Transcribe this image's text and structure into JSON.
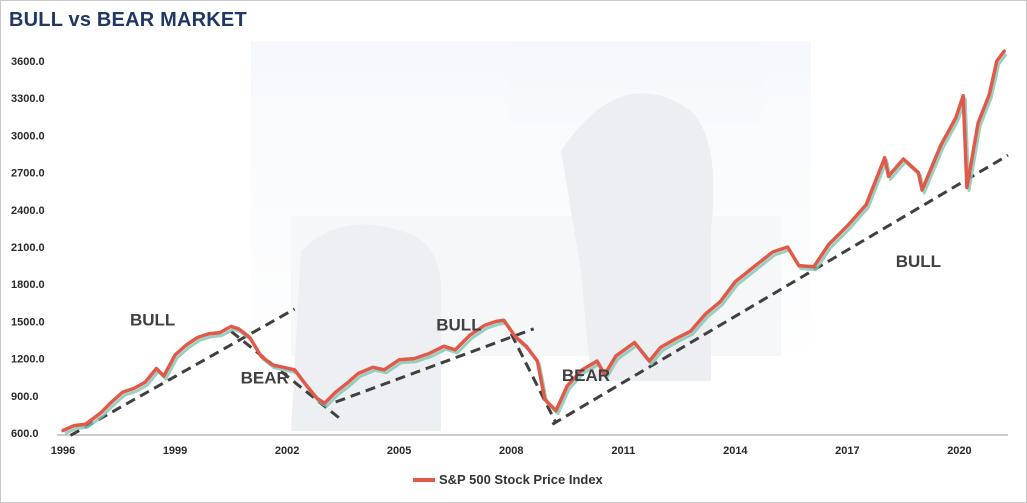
{
  "chart_data": {
    "type": "line",
    "title": "BULL vs BEAR MARKET",
    "ylim": [
      600,
      3700
    ],
    "xlim": [
      1996,
      2021.3
    ],
    "y_ticks": [
      "600.0",
      "900.0",
      "1200.0",
      "1500.0",
      "1800.0",
      "2100.0",
      "2400.0",
      "2700.0",
      "3000.0",
      "3300.0",
      "3600.0"
    ],
    "x_ticks": [
      "1996",
      "1999",
      "2002",
      "2005",
      "2008",
      "2011",
      "2014",
      "2017",
      "2020"
    ],
    "colors": {
      "series": "#e15a49",
      "shadow": "#7fc4b3",
      "trend": "#404040",
      "title": "#1f3864"
    },
    "legend": {
      "position": "bottom-center",
      "label": "S&P 500 Stock Price Index"
    },
    "series": [
      {
        "name": "S&P 500 Stock Price Index",
        "x": [
          1996.0,
          1996.3,
          1996.6,
          1997.0,
          1997.3,
          1997.6,
          1997.9,
          1998.2,
          1998.5,
          1998.7,
          1999.0,
          1999.3,
          1999.6,
          1999.9,
          2000.2,
          2000.5,
          2000.7,
          2001.0,
          2001.3,
          2001.6,
          2001.9,
          2002.2,
          2002.5,
          2002.8,
          2003.0,
          2003.3,
          2003.6,
          2003.9,
          2004.3,
          2004.6,
          2005.0,
          2005.4,
          2005.8,
          2006.2,
          2006.5,
          2006.9,
          2007.3,
          2007.6,
          2007.8,
          2008.1,
          2008.4,
          2008.7,
          2008.9,
          2009.2,
          2009.5,
          2009.9,
          2010.3,
          2010.5,
          2010.8,
          2011.3,
          2011.7,
          2012.0,
          2012.4,
          2012.8,
          2013.2,
          2013.6,
          2014.0,
          2014.5,
          2015.0,
          2015.4,
          2015.7,
          2016.1,
          2016.5,
          2017.0,
          2017.5,
          2018.0,
          2018.1,
          2018.5,
          2018.9,
          2019.0,
          2019.5,
          2019.9,
          2020.1,
          2020.2,
          2020.5,
          2020.8,
          2021.0,
          2021.2
        ],
        "values": [
          620,
          660,
          670,
          760,
          850,
          930,
          960,
          1010,
          1120,
          1060,
          1230,
          1310,
          1370,
          1400,
          1410,
          1460,
          1440,
          1370,
          1220,
          1150,
          1130,
          1110,
          990,
          880,
          840,
          930,
          1000,
          1080,
          1130,
          1110,
          1190,
          1200,
          1240,
          1300,
          1270,
          1390,
          1470,
          1500,
          1510,
          1380,
          1300,
          1180,
          870,
          780,
          980,
          1110,
          1180,
          1070,
          1220,
          1330,
          1180,
          1290,
          1360,
          1420,
          1560,
          1660,
          1820,
          1940,
          2060,
          2100,
          1950,
          1940,
          2120,
          2270,
          2440,
          2820,
          2670,
          2810,
          2700,
          2560,
          2920,
          3140,
          3320,
          2580,
          3100,
          3330,
          3600,
          3680
        ]
      }
    ],
    "trendlines": [
      {
        "x": [
          1996.2,
          2002.2
        ],
        "values": [
          580,
          1600
        ]
      },
      {
        "x": [
          2000.5,
          2003.4
        ],
        "values": [
          1420,
          720
        ]
      },
      {
        "x": [
          2003.3,
          2008.6
        ],
        "values": [
          850,
          1440
        ]
      },
      {
        "x": [
          2008.0,
          2009.2
        ],
        "values": [
          1400,
          680
        ]
      },
      {
        "x": [
          2009.1,
          2021.3
        ],
        "values": [
          670,
          2840
        ]
      }
    ],
    "annotations": [
      {
        "text": "BULL",
        "x": 1998.4,
        "y": 1465
      },
      {
        "text": "BEAR",
        "x": 2001.4,
        "y": 1000
      },
      {
        "text": "BULL",
        "x": 2006.6,
        "y": 1425
      },
      {
        "text": "BEAR",
        "x": 2010.0,
        "y": 1020
      },
      {
        "text": "BULL",
        "x": 2018.9,
        "y": 1940
      }
    ]
  }
}
